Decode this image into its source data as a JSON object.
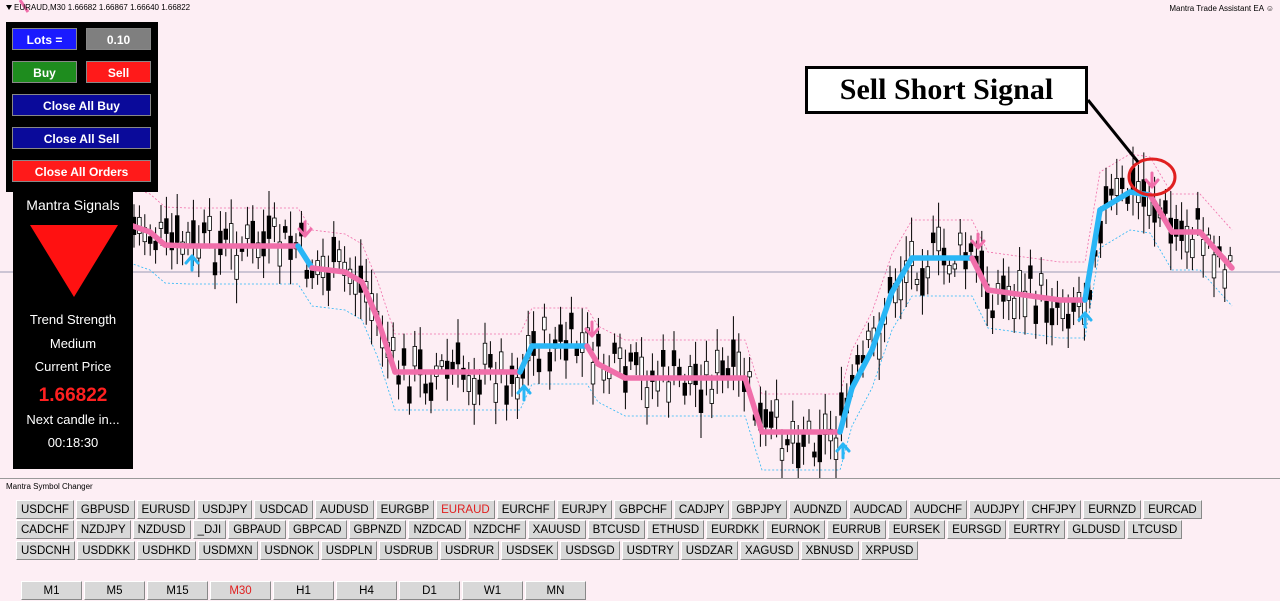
{
  "chart": {
    "symbol_info": "EURAUD,M30  1.66682 1.66867 1.66640 1.66822",
    "ea_label": "Mantra Trade Assistant EA ☺",
    "colors": {
      "bull_line": "#29b6f6",
      "bear_line": "#f06eaa",
      "up_arrow": "#29b6f6",
      "down_arrow": "#f06eaa",
      "background": "#fdeef4",
      "candle": "#000000",
      "highlight_circle": "#e02020"
    }
  },
  "trade_panel": {
    "lots_label": "Lots =",
    "lots_value": "0.10",
    "buy_label": "Buy",
    "sell_label": "Sell",
    "close_all_buy_label": "Close All Buy",
    "close_all_sell_label": "Close All Sell",
    "close_all_orders_label": "Close All Orders"
  },
  "signals_panel": {
    "title": "Mantra Signals",
    "signal_icon": "down-triangle-icon",
    "trend_strength_label": "Trend Strength",
    "trend_strength_value": "Medium",
    "current_price_label": "Current Price",
    "current_price_value": "1.66822",
    "next_candle_label": "Next candle in...",
    "countdown": "00:18:30"
  },
  "callout": {
    "text": "Sell Short Signal"
  },
  "symbol_changer": {
    "title": "Mantra Symbol Changer",
    "active_symbol": "EURAUD",
    "rows": [
      [
        "USDCHF",
        "GBPUSD",
        "EURUSD",
        "USDJPY",
        "USDCAD",
        "AUDUSD",
        "EURGBP",
        "EURAUD",
        "EURCHF",
        "EURJPY",
        "GBPCHF",
        "CADJPY",
        "GBPJPY",
        "AUDNZD",
        "AUDCAD",
        "AUDCHF",
        "AUDJPY",
        "CHFJPY",
        "EURNZD",
        "EURCAD"
      ],
      [
        "CADCHF",
        "NZDJPY",
        "NZDUSD",
        "_DJI",
        "GBPAUD",
        "GBPCAD",
        "GBPNZD",
        "NZDCAD",
        "NZDCHF",
        "XAUUSD",
        "BTCUSD",
        "ETHUSD",
        "EURDKK",
        "EURNOK",
        "EURRUB",
        "EURSEK",
        "EURSGD",
        "EURTRY",
        "GLDUSD",
        "LTCUSD"
      ],
      [
        "USDCNH",
        "USDDKK",
        "USDHKD",
        "USDMXN",
        "USDNOK",
        "USDPLN",
        "USDRUB",
        "USDRUR",
        "USDSEK",
        "USDSGD",
        "USDTRY",
        "USDZAR",
        "XAGUSD",
        "XBNUSD",
        "XRPUSD"
      ]
    ],
    "timeframes": [
      "M1",
      "M5",
      "M15",
      "M30",
      "H1",
      "H4",
      "D1",
      "W1",
      "MN"
    ],
    "active_timeframe": "M30"
  }
}
